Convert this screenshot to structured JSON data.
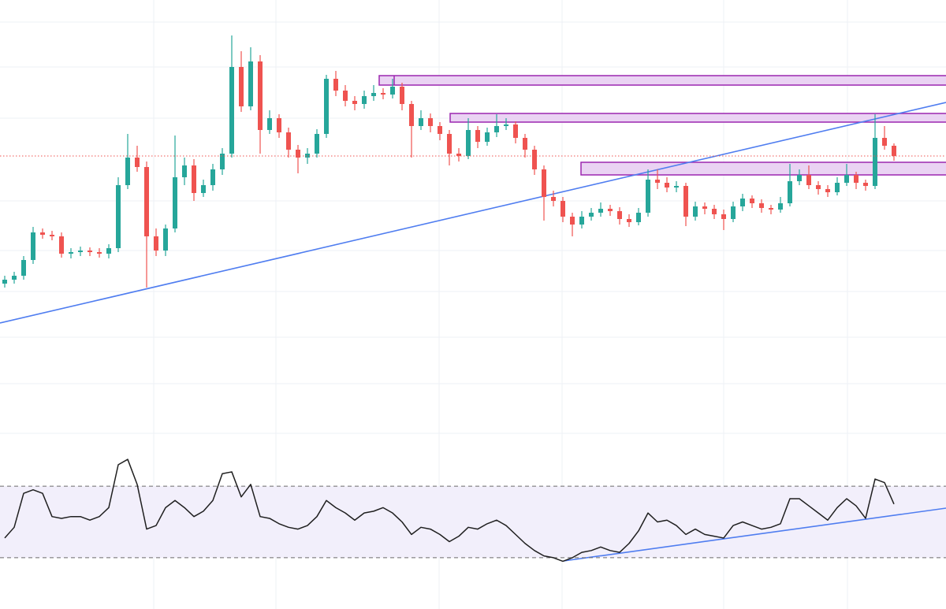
{
  "chart_data": [
    {
      "type": "candlestick",
      "ylim": [
        0,
        540
      ],
      "up_color": "#26a69a",
      "down_color": "#ef5350",
      "open": [
        180,
        185,
        190,
        210,
        245,
        242,
        240,
        218,
        220,
        222,
        220,
        218,
        225,
        305,
        340,
        328,
        240,
        222,
        250,
        315,
        330,
        295,
        305,
        325,
        345,
        455,
        405,
        462,
        375,
        390,
        372,
        350,
        340,
        345,
        370,
        440,
        425,
        412,
        408,
        418,
        422,
        420,
        430,
        408,
        380,
        390,
        380,
        370,
        345,
        342,
        375,
        360,
        372,
        380,
        382,
        365,
        350,
        325,
        290,
        285,
        265,
        255,
        265,
        270,
        275,
        272,
        262,
        258,
        270,
        312,
        308,
        302,
        304,
        265,
        278,
        275,
        268,
        262,
        278,
        288,
        282,
        276,
        274,
        282,
        310,
        318,
        305,
        300,
        296,
        308,
        318,
        308,
        304,
        365,
        355
      ],
      "high": [
        190,
        195,
        215,
        252,
        250,
        247,
        245,
        225,
        227,
        226,
        225,
        230,
        315,
        370,
        355,
        335,
        250,
        255,
        368,
        340,
        338,
        312,
        332,
        352,
        495,
        475,
        480,
        470,
        400,
        395,
        378,
        356,
        352,
        376,
        445,
        450,
        432,
        418,
        425,
        432,
        428,
        440,
        435,
        412,
        400,
        396,
        385,
        375,
        352,
        390,
        380,
        378,
        395,
        390,
        386,
        370,
        355,
        330,
        298,
        290,
        270,
        272,
        276,
        283,
        280,
        277,
        268,
        276,
        325,
        325,
        315,
        310,
        308,
        284,
        283,
        280,
        274,
        284,
        294,
        292,
        287,
        280,
        290,
        332,
        325,
        330,
        310,
        305,
        315,
        332,
        322,
        312,
        395,
        380,
        358
      ],
      "low": [
        175,
        180,
        185,
        205,
        237,
        235,
        213,
        212,
        215,
        215,
        213,
        212,
        220,
        300,
        322,
        175,
        215,
        215,
        245,
        305,
        285,
        290,
        298,
        318,
        340,
        398,
        400,
        345,
        370,
        365,
        340,
        320,
        332,
        340,
        365,
        418,
        405,
        400,
        402,
        412,
        414,
        415,
        400,
        340,
        375,
        372,
        362,
        330,
        335,
        338,
        352,
        355,
        366,
        375,
        358,
        340,
        318,
        260,
        278,
        258,
        240,
        250,
        260,
        265,
        266,
        255,
        252,
        254,
        265,
        300,
        296,
        296,
        253,
        260,
        268,
        262,
        248,
        258,
        272,
        276,
        270,
        268,
        270,
        278,
        305,
        300,
        293,
        290,
        292,
        304,
        300,
        298,
        300,
        350,
        336
      ],
      "close": [
        185,
        190,
        210,
        245,
        242,
        240,
        218,
        220,
        222,
        220,
        218,
        225,
        305,
        340,
        328,
        240,
        222,
        250,
        315,
        330,
        295,
        305,
        325,
        345,
        455,
        405,
        462,
        375,
        390,
        372,
        350,
        340,
        345,
        370,
        440,
        425,
        412,
        408,
        418,
        422,
        420,
        430,
        408,
        380,
        390,
        380,
        370,
        345,
        342,
        375,
        360,
        372,
        380,
        382,
        365,
        350,
        325,
        290,
        285,
        265,
        255,
        265,
        270,
        275,
        272,
        262,
        258,
        270,
        312,
        308,
        302,
        304,
        265,
        278,
        275,
        268,
        262,
        278,
        288,
        282,
        276,
        274,
        282,
        310,
        318,
        305,
        300,
        296,
        308,
        318,
        308,
        304,
        365,
        355,
        342
      ]
    },
    {
      "type": "line",
      "ylim": [
        0,
        100
      ],
      "levels": [
        70,
        30
      ],
      "color": "#1f1f1f",
      "values": [
        41,
        47,
        66,
        68,
        66,
        53,
        52,
        53,
        53,
        51,
        53,
        58,
        82,
        85,
        71,
        46,
        48,
        58,
        62,
        58,
        53,
        56,
        62,
        77,
        78,
        64,
        71,
        53,
        52,
        49,
        47,
        46,
        48,
        53,
        62,
        58,
        55,
        51,
        55,
        56,
        58,
        55,
        50,
        43,
        47,
        46,
        43,
        39,
        42,
        47,
        46,
        49,
        51,
        48,
        43,
        38,
        34,
        31,
        30,
        28,
        30,
        33,
        34,
        36,
        34,
        33,
        38,
        45,
        55,
        50,
        51,
        48,
        43,
        46,
        43,
        42,
        41,
        48,
        50,
        48,
        46,
        47,
        49,
        63,
        63,
        59,
        55,
        51,
        58,
        63,
        59,
        52,
        74,
        72,
        60
      ]
    }
  ]
}
